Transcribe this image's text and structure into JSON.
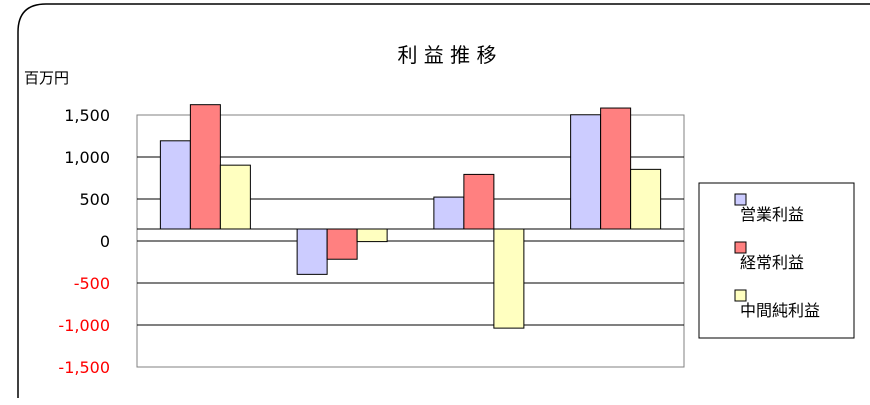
{
  "chart_data": {
    "type": "bar",
    "title": "利 益 推 移",
    "ylabel": "百万円",
    "xlabel": "",
    "categories": [
      "",
      "",
      "",
      ""
    ],
    "ylim": [
      -1500,
      1500
    ],
    "yticks": [
      1500,
      1000,
      500,
      0,
      -500,
      -1000,
      -1500
    ],
    "ytick_labels": [
      "1,500",
      "1,000",
      "500",
      "0",
      "-500",
      "-1,000",
      "-1,500"
    ],
    "negative_tick_color": "#ff0000",
    "grid": true,
    "legend_position": "right",
    "series": [
      {
        "name": "営業利益",
        "color": "#ccccff",
        "values": [
          1050,
          -540,
          380,
          1360
        ]
      },
      {
        "name": "経常利益",
        "color": "#ff8080",
        "values": [
          1480,
          -360,
          650,
          1440
        ]
      },
      {
        "name": "中間純利益",
        "color": "#ffffc0",
        "values": [
          760,
          -150,
          -1180,
          710
        ]
      }
    ]
  }
}
